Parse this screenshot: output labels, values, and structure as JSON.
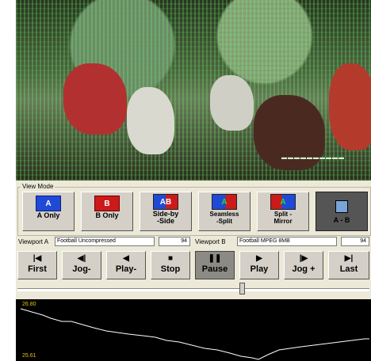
{
  "view_mode": {
    "label": "View Mode",
    "buttons": [
      {
        "id": "a-only",
        "icon_text": "A",
        "label_line1": "A Only",
        "label_line2": ""
      },
      {
        "id": "b-only",
        "icon_text": "B",
        "label_line1": "B Only",
        "label_line2": ""
      },
      {
        "id": "side-by-side",
        "icon_text": "AB",
        "label_line1": "Side-by",
        "label_line2": "-Side"
      },
      {
        "id": "seamless-split",
        "icon_text": "A",
        "label_line1": "Seamless",
        "label_line2": "-Split"
      },
      {
        "id": "split-mirror",
        "icon_text": "A",
        "label_line1": "Split -",
        "label_line2": "Mirror"
      },
      {
        "id": "a-minus-b",
        "icon_text": "",
        "label_line1": "A - B",
        "label_line2": ""
      }
    ],
    "active": "a-minus-b"
  },
  "viewport_a": {
    "label": "Viewport A",
    "name": "Football Uncompressed",
    "frame": "94"
  },
  "viewport_b": {
    "label": "Viewport B",
    "name": "Football MPEG 8MB",
    "frame": "94"
  },
  "transport": {
    "buttons": [
      {
        "id": "first",
        "glyph": "|◀",
        "label": "First"
      },
      {
        "id": "jog-back",
        "glyph": "◀|",
        "label": "Jog-"
      },
      {
        "id": "play-back",
        "glyph": "◀",
        "label": "Play-"
      },
      {
        "id": "stop",
        "glyph": "■",
        "label": "Stop"
      },
      {
        "id": "pause",
        "glyph": "❚❚",
        "label": "Pause"
      },
      {
        "id": "play",
        "glyph": "▶",
        "label": "Play"
      },
      {
        "id": "jog-forward",
        "glyph": "|▶",
        "label": "Jog +"
      },
      {
        "id": "last",
        "glyph": "▶|",
        "label": "Last"
      }
    ],
    "pressed": "pause"
  },
  "video": {
    "overlay_text": "▬▬▬▬▬▬▬▬▬▬"
  },
  "graph": {
    "y_top_label": "26.80",
    "y_bottom_label": "25.61",
    "line_color": "#ffffff",
    "label_color": "#e6c800"
  }
}
